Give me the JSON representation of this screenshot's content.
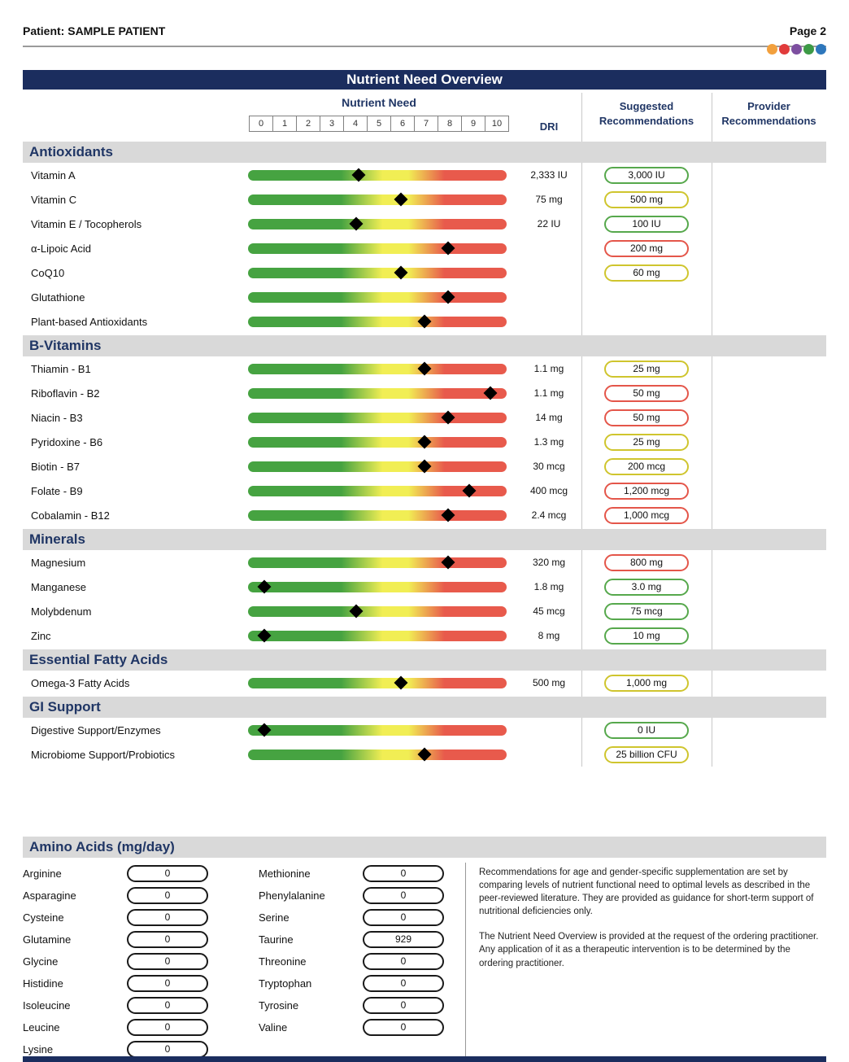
{
  "header": {
    "patient": "Patient: SAMPLE PATIENT",
    "page": "Page 2",
    "dot_colors": [
      "#f2a03d",
      "#e13b3b",
      "#7d4fa0",
      "#3d9a46",
      "#2e77bc"
    ]
  },
  "title": "Nutrient Need Overview",
  "table": {
    "nutrient_need_label": "Nutrient Need",
    "scale": [
      "0",
      "1",
      "2",
      "3",
      "4",
      "5",
      "6",
      "7",
      "8",
      "9",
      "10"
    ],
    "dri_label": "DRI",
    "suggested_label_1": "Suggested",
    "suggested_label_2": "Recommendations",
    "provider_label_1": "Provider",
    "provider_label_2": "Recommendations"
  },
  "colors": {
    "green": "#56a84c",
    "yellow": "#cfc52e",
    "red": "#e4564a",
    "navy": "#1b2d5e",
    "bar_green": "#46a341",
    "bar_yellow": "#f1ee54",
    "bar_red": "#e85a4c"
  },
  "sections": [
    {
      "name": "Antioxidants",
      "rows": [
        {
          "name": "Vitamin A",
          "need": 4.1,
          "dri": "2,333 IU",
          "rec": "3,000 IU",
          "rec_color": "green"
        },
        {
          "name": "Vitamin C",
          "need": 5.9,
          "dri": "75 mg",
          "rec": "500 mg",
          "rec_color": "yellow"
        },
        {
          "name": "Vitamin E / Tocopherols",
          "need": 4.0,
          "dri": "22 IU",
          "rec": "100 IU",
          "rec_color": "green"
        },
        {
          "name": "α-Lipoic Acid",
          "need": 7.9,
          "dri": "",
          "rec": "200 mg",
          "rec_color": "red"
        },
        {
          "name": "CoQ10",
          "need": 5.9,
          "dri": "",
          "rec": "60 mg",
          "rec_color": "yellow"
        },
        {
          "name": "Glutathione",
          "need": 7.9,
          "dri": "",
          "rec": "",
          "rec_color": ""
        },
        {
          "name": "Plant-based Antioxidants",
          "need": 6.9,
          "dri": "",
          "rec": "",
          "rec_color": ""
        }
      ]
    },
    {
      "name": "B-Vitamins",
      "rows": [
        {
          "name": "Thiamin - B1",
          "need": 6.9,
          "dri": "1.1 mg",
          "rec": "25 mg",
          "rec_color": "yellow"
        },
        {
          "name": "Riboflavin - B2",
          "need": 9.7,
          "dri": "1.1 mg",
          "rec": "50 mg",
          "rec_color": "red"
        },
        {
          "name": "Niacin - B3",
          "need": 7.9,
          "dri": "14 mg",
          "rec": "50 mg",
          "rec_color": "red"
        },
        {
          "name": "Pyridoxine - B6",
          "need": 6.9,
          "dri": "1.3 mg",
          "rec": "25 mg",
          "rec_color": "yellow"
        },
        {
          "name": "Biotin - B7",
          "need": 6.9,
          "dri": "30 mcg",
          "rec": "200 mcg",
          "rec_color": "yellow"
        },
        {
          "name": "Folate - B9",
          "need": 8.8,
          "dri": "400 mcg",
          "rec": "1,200 mcg",
          "rec_color": "red"
        },
        {
          "name": "Cobalamin - B12",
          "need": 7.9,
          "dri": "2.4 mcg",
          "rec": "1,000 mcg",
          "rec_color": "red"
        }
      ]
    },
    {
      "name": "Minerals",
      "rows": [
        {
          "name": "Magnesium",
          "need": 7.9,
          "dri": "320 mg",
          "rec": "800 mg",
          "rec_color": "red"
        },
        {
          "name": "Manganese",
          "need": 0.1,
          "dri": "1.8 mg",
          "rec": "3.0 mg",
          "rec_color": "green"
        },
        {
          "name": "Molybdenum",
          "need": 4.0,
          "dri": "45 mcg",
          "rec": "75 mcg",
          "rec_color": "green"
        },
        {
          "name": "Zinc",
          "need": 0.1,
          "dri": "8 mg",
          "rec": "10 mg",
          "rec_color": "green"
        }
      ]
    },
    {
      "name": "Essential Fatty Acids",
      "rows": [
        {
          "name": "Omega-3 Fatty Acids",
          "need": 5.9,
          "dri": "500 mg",
          "rec": "1,000 mg",
          "rec_color": "yellow"
        }
      ]
    },
    {
      "name": "GI Support",
      "rows": [
        {
          "name": "Digestive Support/Enzymes",
          "need": 0.1,
          "dri": "",
          "rec": "0 IU",
          "rec_color": "green"
        },
        {
          "name": "Microbiome Support/Probiotics",
          "need": 6.9,
          "dri": "",
          "rec": "25 billion CFU",
          "rec_color": "yellow"
        }
      ]
    }
  ],
  "amino": {
    "title": "Amino Acids (mg/day)",
    "col1": [
      {
        "name": "Arginine",
        "value": "0"
      },
      {
        "name": "Asparagine",
        "value": "0"
      },
      {
        "name": "Cysteine",
        "value": "0"
      },
      {
        "name": "Glutamine",
        "value": "0"
      },
      {
        "name": "Glycine",
        "value": "0"
      },
      {
        "name": "Histidine",
        "value": "0"
      },
      {
        "name": "Isoleucine",
        "value": "0"
      },
      {
        "name": "Leucine",
        "value": "0"
      },
      {
        "name": "Lysine",
        "value": "0"
      }
    ],
    "col2": [
      {
        "name": "Methionine",
        "value": "0"
      },
      {
        "name": "Phenylalanine",
        "value": "0"
      },
      {
        "name": "Serine",
        "value": "0"
      },
      {
        "name": "Taurine",
        "value": "929"
      },
      {
        "name": "Threonine",
        "value": "0"
      },
      {
        "name": "Tryptophan",
        "value": "0"
      },
      {
        "name": "Tyrosine",
        "value": "0"
      },
      {
        "name": "Valine",
        "value": "0"
      }
    ]
  },
  "disclaimer": {
    "p1": "Recommendations for age and gender-specific supplementation are set by comparing levels of nutrient functional need to optimal levels as described in the peer-reviewed literature. They are provided as guidance for short-term support of nutritional deficiencies only.",
    "p2": "The Nutrient Need Overview is provided at the request of the ordering practitioner. Any application of it as a therapeutic intervention is to be determined by the ordering practitioner."
  }
}
